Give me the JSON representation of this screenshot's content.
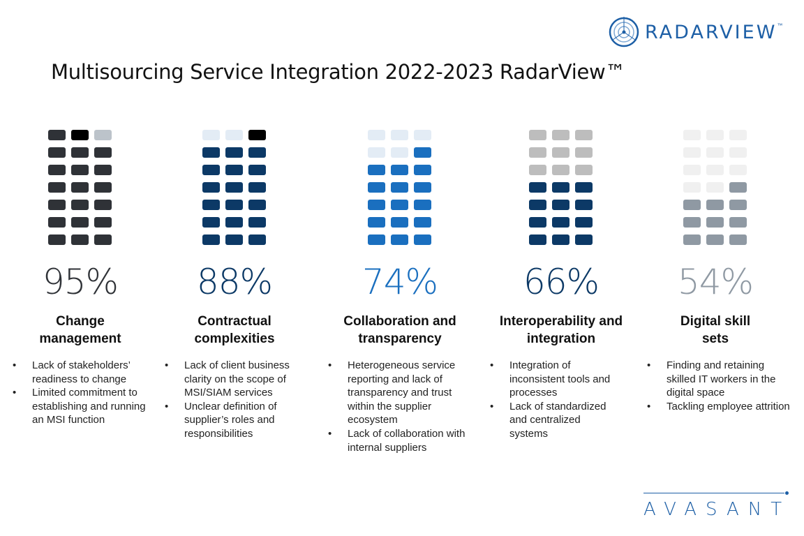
{
  "title": "Multisourcing Service Integration 2022-2023 RadarView™",
  "brand": {
    "radarview": "RADARVIEW",
    "tm": "™",
    "avasant": "AVASANT"
  },
  "columns": [
    {
      "percent": "95%",
      "value": 95,
      "color": "#2f3237",
      "heading": [
        "Change",
        "management"
      ],
      "cells": [
        "#2f3237",
        "#000000",
        "#bcc3ca",
        "#2f3237",
        "#2f3237",
        "#2f3237",
        "#2f3237",
        "#2f3237",
        "#2f3237",
        "#2f3237",
        "#2f3237",
        "#2f3237",
        "#2f3237",
        "#2f3237",
        "#2f3237",
        "#2f3237",
        "#2f3237",
        "#2f3237",
        "#2f3237",
        "#2f3237",
        "#2f3237"
      ],
      "bullets": [
        "Lack of stakeholders’ readiness to change",
        "Limited commitment to establishing and running an MSI function"
      ]
    },
    {
      "percent": "88%",
      "value": 88,
      "color": "#0c3966",
      "heading": [
        "Contractual",
        "complexities"
      ],
      "cells": [
        "#e3ecf5",
        "#e3ecf5",
        "#000000",
        "#0c3966",
        "#0c3966",
        "#0c3966",
        "#0c3966",
        "#0c3966",
        "#0c3966",
        "#0c3966",
        "#0c3966",
        "#0c3966",
        "#0c3966",
        "#0c3966",
        "#0c3966",
        "#0c3966",
        "#0c3966",
        "#0c3966",
        "#0c3966",
        "#0c3966",
        "#0c3966"
      ],
      "bullets": [
        "Lack of client business clarity on the scope of MSI/SIAM services",
        "Unclear definition of supplier’s roles and responsibilities"
      ]
    },
    {
      "percent": "74%",
      "value": 74,
      "color": "#1a6fbf",
      "heading": [
        "Collaboration and",
        "transparency"
      ],
      "cells": [
        "#e3ecf5",
        "#e3ecf5",
        "#e3ecf5",
        "#e3ecf5",
        "#e3ecf5",
        "#1a6fbf",
        "#1a6fbf",
        "#1a6fbf",
        "#1a6fbf",
        "#1a6fbf",
        "#1a6fbf",
        "#1a6fbf",
        "#1a6fbf",
        "#1a6fbf",
        "#1a6fbf",
        "#1a6fbf",
        "#1a6fbf",
        "#1a6fbf",
        "#1a6fbf",
        "#1a6fbf",
        "#1a6fbf"
      ],
      "bullets": [
        "Heterogeneous service reporting and lack of transparency and trust within the supplier ecosystem",
        "Lack of collaboration with internal suppliers"
      ]
    },
    {
      "percent": "66%",
      "value": 66,
      "color": "#0c3966",
      "heading": [
        "Interoperability and",
        "integration"
      ],
      "cells": [
        "#bdbdbd",
        "#bdbdbd",
        "#bdbdbd",
        "#bdbdbd",
        "#bdbdbd",
        "#bdbdbd",
        "#bdbdbd",
        "#bdbdbd",
        "#bdbdbd",
        "#0c3966",
        "#0c3966",
        "#0c3966",
        "#0c3966",
        "#0c3966",
        "#0c3966",
        "#0c3966",
        "#0c3966",
        "#0c3966",
        "#0c3966",
        "#0c3966",
        "#0c3966"
      ],
      "bullets": [
        "Integration of inconsistent tools and processes",
        "Lack of standardized and centralized systems"
      ]
    },
    {
      "percent": "54%",
      "value": 54,
      "color": "#8f99a3",
      "heading": [
        "Digital skill",
        "sets"
      ],
      "cells": [
        "#f0f0f0",
        "#f0f0f0",
        "#f0f0f0",
        "#f0f0f0",
        "#f0f0f0",
        "#f0f0f0",
        "#f0f0f0",
        "#f0f0f0",
        "#f0f0f0",
        "#f0f0f0",
        "#f0f0f0",
        "#8f99a3",
        "#8f99a3",
        "#8f99a3",
        "#8f99a3",
        "#8f99a3",
        "#8f99a3",
        "#8f99a3",
        "#8f99a3",
        "#8f99a3",
        "#8f99a3"
      ],
      "bullets": [
        "Finding and retaining skilled IT workers in the digital space",
        "Tackling employee attrition"
      ]
    }
  ]
}
